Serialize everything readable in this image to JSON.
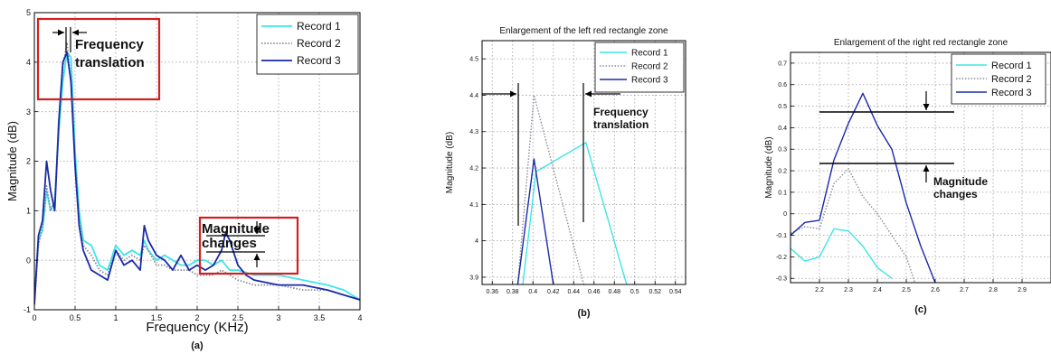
{
  "colors": {
    "record1": "#3ee6e6",
    "record2": "#8a8a9a",
    "record3": "#1a2aa8",
    "highlight": "#d21f1f"
  },
  "chart_data": [
    {
      "id": "a",
      "type": "line",
      "title": "",
      "caption": "(a)",
      "xlabel": "Frequency (KHz)",
      "ylabel": "Magnitude (dB)",
      "xlim": [
        0,
        4
      ],
      "ylim": [
        -1,
        5
      ],
      "xticks": [
        0,
        0.5,
        1,
        1.5,
        2,
        2.5,
        3,
        3.5,
        4
      ],
      "xtick_labels": [
        "0",
        "0.5",
        "1",
        "1.5",
        "2",
        "2.5",
        "3",
        "3.5",
        "4"
      ],
      "yticks": [
        -1,
        0,
        1,
        2,
        3,
        4,
        5
      ],
      "ytick_labels": [
        "-1",
        "0",
        "1",
        "2",
        "3",
        "4",
        "5"
      ],
      "grid": true,
      "legend_position": "top-right",
      "series": [
        {
          "name": "Record 1",
          "color": "#3ee6e6",
          "dash": "solid",
          "x": [
            0,
            0.05,
            0.1,
            0.15,
            0.2,
            0.25,
            0.3,
            0.35,
            0.4,
            0.45,
            0.5,
            0.55,
            0.6,
            0.7,
            0.8,
            0.9,
            1.0,
            1.1,
            1.2,
            1.3,
            1.35,
            1.4,
            1.5,
            1.6,
            1.7,
            1.8,
            1.9,
            2.0,
            2.1,
            2.2,
            2.3,
            2.4,
            2.5,
            2.7,
            3.0,
            3.3,
            3.6,
            3.8,
            4.0
          ],
          "y": [
            -0.8,
            0.4,
            0.6,
            1.4,
            1.0,
            1.2,
            2.6,
            3.6,
            4.2,
            4.1,
            2.2,
            1.0,
            0.4,
            0.3,
            -0.1,
            -0.2,
            0.3,
            0.1,
            0.2,
            0.1,
            0.4,
            0.2,
            0.0,
            0.1,
            0.0,
            -0.1,
            -0.1,
            0.0,
            0.0,
            -0.1,
            0.0,
            -0.2,
            -0.2,
            -0.3,
            -0.3,
            -0.4,
            -0.5,
            -0.6,
            -0.8
          ]
        },
        {
          "name": "Record 2",
          "color": "#8a8a9a",
          "dash": "dotted",
          "x": [
            0,
            0.05,
            0.1,
            0.15,
            0.2,
            0.25,
            0.3,
            0.35,
            0.4,
            0.45,
            0.5,
            0.55,
            0.6,
            0.7,
            0.8,
            0.9,
            1.0,
            1.1,
            1.2,
            1.3,
            1.35,
            1.4,
            1.5,
            1.6,
            1.7,
            1.8,
            1.9,
            2.0,
            2.1,
            2.2,
            2.3,
            2.4,
            2.5,
            2.7,
            3.0,
            3.3,
            3.6,
            3.8,
            4.0
          ],
          "y": [
            -0.9,
            0.3,
            0.7,
            1.5,
            1.0,
            1.2,
            2.8,
            3.9,
            4.4,
            3.6,
            2.0,
            0.8,
            0.3,
            0.1,
            -0.2,
            -0.3,
            0.2,
            0.0,
            0.1,
            0.0,
            0.3,
            0.2,
            -0.1,
            -0.1,
            -0.2,
            -0.2,
            -0.2,
            -0.3,
            -0.3,
            -0.3,
            -0.2,
            -0.3,
            -0.4,
            -0.5,
            -0.5,
            -0.6,
            -0.6,
            -0.7,
            -0.8
          ]
        },
        {
          "name": "Record 3",
          "color": "#1a2aa8",
          "dash": "solid",
          "x": [
            0,
            0.05,
            0.1,
            0.15,
            0.2,
            0.25,
            0.3,
            0.35,
            0.4,
            0.45,
            0.5,
            0.55,
            0.6,
            0.7,
            0.8,
            0.9,
            1.0,
            1.1,
            1.2,
            1.3,
            1.35,
            1.4,
            1.5,
            1.6,
            1.7,
            1.8,
            1.9,
            2.0,
            2.1,
            2.2,
            2.3,
            2.35,
            2.4,
            2.5,
            2.6,
            2.7,
            3.0,
            3.3,
            3.6,
            3.8,
            4.0
          ],
          "y": [
            -0.9,
            0.5,
            0.8,
            2.0,
            1.4,
            1.0,
            2.8,
            4.0,
            4.2,
            3.6,
            1.9,
            0.7,
            0.2,
            -0.2,
            -0.3,
            -0.4,
            0.2,
            -0.1,
            0.0,
            -0.2,
            0.7,
            0.4,
            0.1,
            0.0,
            -0.2,
            0.1,
            -0.2,
            -0.1,
            -0.2,
            -0.1,
            0.2,
            0.56,
            0.4,
            -0.1,
            -0.3,
            -0.4,
            -0.5,
            -0.5,
            -0.6,
            -0.7,
            -0.8
          ]
        }
      ],
      "annotations": [
        "Frequency translation",
        "Magnitude changes"
      ]
    },
    {
      "id": "b",
      "type": "line",
      "title": "Enlargement of the left red rectangle zone",
      "caption": "(b)",
      "xlabel": "",
      "ylabel": "Magnitude (dB)",
      "xlim": [
        0.35,
        0.55
      ],
      "ylim": [
        3.88,
        4.55
      ],
      "xticks": [
        0.36,
        0.38,
        0.4,
        0.42,
        0.44,
        0.46,
        0.48,
        0.5,
        0.52,
        0.54
      ],
      "xtick_labels": [
        "0.36",
        "0.38",
        "0.4",
        "0.42",
        "0.44",
        "0.46",
        "0.48",
        "0.5",
        "0.52",
        "0.54"
      ],
      "yticks": [
        3.9,
        4.0,
        4.1,
        4.2,
        4.3,
        4.4,
        4.5
      ],
      "ytick_labels": [
        "3.9",
        "4",
        "4.1",
        "4.2",
        "4.3",
        "4.4",
        "4.5"
      ],
      "grid": true,
      "legend_position": "top-right",
      "series": [
        {
          "name": "Record 1",
          "color": "#3ee6e6",
          "dash": "solid",
          "x": [
            0.39,
            0.403,
            0.452,
            0.492
          ],
          "y": [
            3.88,
            4.19,
            4.27,
            3.88
          ]
        },
        {
          "name": "Record 2",
          "color": "#8a8a9a",
          "dash": "dotted",
          "x": [
            0.385,
            0.401,
            0.45
          ],
          "y": [
            3.88,
            4.4,
            3.88
          ]
        },
        {
          "name": "Record 3",
          "color": "#1a2aa8",
          "dash": "solid",
          "x": [
            0.385,
            0.401,
            0.42
          ],
          "y": [
            3.88,
            4.225,
            3.88
          ]
        }
      ],
      "annotations": [
        "Frequency translation"
      ]
    },
    {
      "id": "c",
      "type": "line",
      "title": "Enlargement of the right red rectangle zone",
      "caption": "(c)",
      "xlabel": "",
      "ylabel": "Magnitude (dB)",
      "xlim": [
        2.1,
        3.0
      ],
      "ylim": [
        -0.32,
        0.75
      ],
      "xticks": [
        2.2,
        2.3,
        2.4,
        2.5,
        2.6,
        2.7,
        2.8,
        2.9
      ],
      "xtick_labels": [
        "2.2",
        "2.3",
        "2.4",
        "2.5",
        "2.6",
        "2.7",
        "2.8",
        "2.9"
      ],
      "yticks": [
        -0.3,
        -0.2,
        -0.1,
        0,
        0.1,
        0.2,
        0.3,
        0.4,
        0.5,
        0.6,
        0.7
      ],
      "ytick_labels": [
        "-0.3",
        "-0.2",
        "-0.1",
        "0",
        "0.1",
        "0.2",
        "0.3",
        "0.4",
        "0.5",
        "0.6",
        "0.7"
      ],
      "grid": true,
      "legend_position": "top-right",
      "series": [
        {
          "name": "Record 1",
          "color": "#3ee6e6",
          "dash": "solid",
          "x": [
            2.1,
            2.15,
            2.2,
            2.25,
            2.3,
            2.35,
            2.4,
            2.45
          ],
          "y": [
            -0.16,
            -0.22,
            -0.2,
            -0.07,
            -0.08,
            -0.15,
            -0.25,
            -0.3
          ]
        },
        {
          "name": "Record 2",
          "color": "#8a8a9a",
          "dash": "dotted",
          "x": [
            2.1,
            2.15,
            2.2,
            2.25,
            2.3,
            2.35,
            2.4,
            2.45,
            2.5,
            2.53
          ],
          "y": [
            -0.09,
            -0.06,
            -0.07,
            0.14,
            0.21,
            0.08,
            0.0,
            -0.1,
            -0.2,
            -0.32
          ]
        },
        {
          "name": "Record 3",
          "color": "#1a2aa8",
          "dash": "solid",
          "x": [
            2.1,
            2.15,
            2.2,
            2.25,
            2.3,
            2.35,
            2.4,
            2.45,
            2.5,
            2.55,
            2.6
          ],
          "y": [
            -0.1,
            -0.04,
            -0.03,
            0.25,
            0.42,
            0.56,
            0.41,
            0.3,
            0.05,
            -0.15,
            -0.32
          ]
        }
      ],
      "annotations": [
        "Magnitude changes"
      ]
    }
  ]
}
